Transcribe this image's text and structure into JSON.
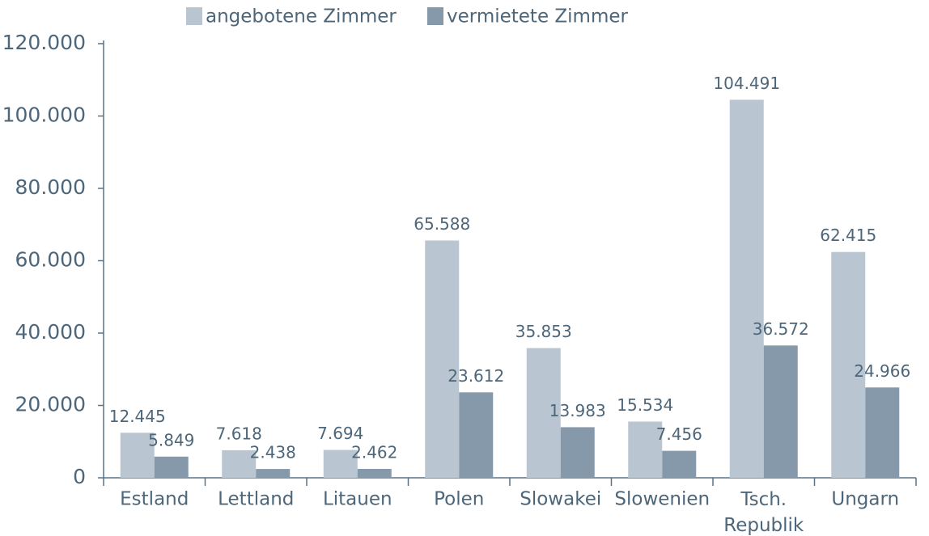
{
  "chart_data": {
    "type": "bar",
    "categories": [
      "Estland",
      "Lettland",
      "Litauen",
      "Polen",
      "Slowakei",
      "Slowenien",
      "Tsch. Republik",
      "Ungarn"
    ],
    "series": [
      {
        "name": "angebotene Zimmer",
        "color": "#b9c5d1",
        "values": [
          12445,
          7618,
          7694,
          65588,
          35853,
          15534,
          104491,
          62415
        ],
        "value_labels": [
          "12.445",
          "7.618",
          "7.694",
          "65.588",
          "35.853",
          "15.534",
          "104.491",
          "62.415"
        ]
      },
      {
        "name": "vermietete Zimmer",
        "color": "#8599ab",
        "values": [
          5849,
          2438,
          2462,
          23612,
          13983,
          7456,
          36572,
          24966
        ],
        "value_labels": [
          "5.849",
          "2.438",
          "2.462",
          "23.612",
          "13.983",
          "7.456",
          "36.572",
          "24.966"
        ]
      }
    ],
    "ylim": [
      0,
      120000
    ],
    "yticks": [
      0,
      {
        "value": 20000,
        "label": "20.000"
      },
      {
        "value": 40000,
        "label": "40.000"
      },
      {
        "value": 60000,
        "label": "60.000"
      },
      {
        "value": 80000,
        "label": "80.000"
      },
      {
        "value": 100000,
        "label": "100.000"
      },
      {
        "value": 120000,
        "label": "120.000"
      }
    ],
    "legend": "top"
  }
}
